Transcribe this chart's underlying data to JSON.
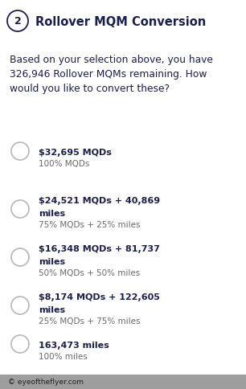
{
  "title": "Rollover MQM Conversion",
  "title_number": "2",
  "desc_lines": [
    "Based on your selection above, you have",
    "326,946 Rollover MQMs remaining. How",
    "would you like to convert these?"
  ],
  "options": [
    {
      "bold_line1": "$32,695 MQDs",
      "bold_line2": null,
      "sub_line": "100% MQDs",
      "circle_on_line": 1
    },
    {
      "bold_line1": "$24,521 MQDs + 40,869",
      "bold_line2": "miles",
      "sub_line": "75% MQDs + 25% miles",
      "circle_on_line": 2
    },
    {
      "bold_line1": "$16,348 MQDs + 81,737",
      "bold_line2": "miles",
      "sub_line": "50% MQDs + 50% miles",
      "circle_on_line": 2
    },
    {
      "bold_line1": "$8,174 MQDs + 122,605",
      "bold_line2": "miles",
      "sub_line": "25% MQDs + 75% miles",
      "circle_on_line": 2
    },
    {
      "bold_line1": "163,473 miles",
      "bold_line2": null,
      "sub_line": "100% miles",
      "circle_on_line": 1
    }
  ],
  "background_color": "#ffffff",
  "text_dark": "#1b1f4b",
  "text_sub": "#6b6b6b",
  "circle_edge": "#bbbbbb",
  "title_color": "#1b1f4b",
  "footer_bg": "#9e9e9e",
  "footer_text": "© eyeoftheflyer.com",
  "fig_w": 3.06,
  "fig_h": 4.85,
  "dpi": 100
}
